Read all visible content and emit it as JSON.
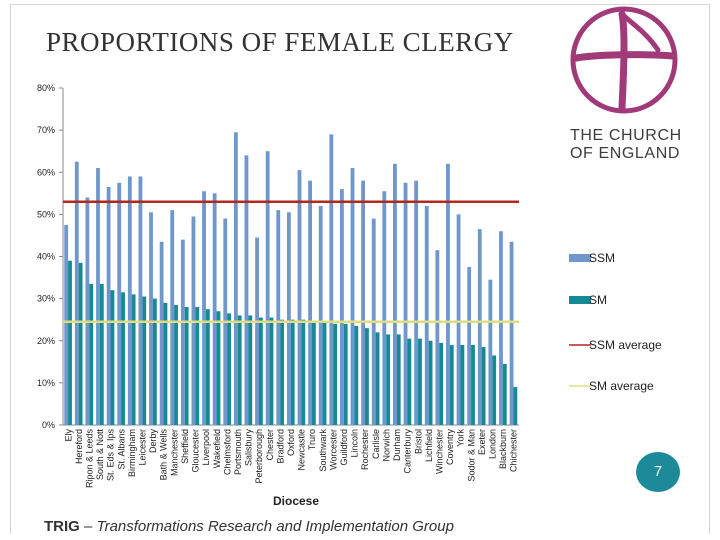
{
  "slide": {
    "title": "PROPORTIONS OF FEMALE CLERGY",
    "logo_line1": "THE CHURCH",
    "logo_line2": "OF ENGLAND",
    "page_number": "7",
    "footer_bold": "TRIG",
    "footer_rest": "Transformations Research and Implementation Group",
    "footer_sep": "–"
  },
  "colors": {
    "ssm": "#6f97cc",
    "sm": "#158a95",
    "ssm_avg": "#b0281e",
    "sm_avg": "#dede7e",
    "logo": "#a13a78"
  },
  "chart_data": {
    "type": "bar",
    "title": "",
    "xlabel": "Diocese",
    "ylabel": "",
    "ylim": [
      0,
      80
    ],
    "y_ticks": [
      "0%",
      "10%",
      "20%",
      "30%",
      "40%",
      "50%",
      "60%",
      "70%",
      "80%"
    ],
    "categories": [
      "Ely",
      "Hereford",
      "Ripon & Leeds",
      "South & Nott",
      "St. Eds & Ips",
      "St. Albans",
      "Birmingham",
      "Leicester",
      "Derby",
      "Bath & Wells",
      "Manchester",
      "Sheffield",
      "Gloucester",
      "Liverpool",
      "Wakefield",
      "Chelmsford",
      "Portsmouth",
      "Salisbury",
      "Peterborough",
      "Chester",
      "Bradford",
      "Oxford",
      "Newcastle",
      "Truro",
      "Southwark",
      "Worcester",
      "Guildford",
      "Lincoln",
      "Rochester",
      "Carlisle",
      "Norwich",
      "Durham",
      "Canterbury",
      "Bristol",
      "Lichfield",
      "Winchester",
      "Coventry",
      "York",
      "Sodor & Man",
      "Exeter",
      "London",
      "Blackburn",
      "Chichester"
    ],
    "series": [
      {
        "name": "SSM",
        "values": [
          47.5,
          62.5,
          54,
          61,
          56.5,
          57.5,
          59,
          59,
          50.5,
          43.5,
          51,
          44,
          49.5,
          55.5,
          55,
          49,
          69.5,
          64,
          44.5,
          65,
          51,
          50.5,
          60.5,
          58,
          52,
          69,
          56,
          61,
          58,
          49,
          55.5,
          62,
          57.5,
          58,
          52,
          41.5,
          62,
          50,
          37.5,
          46.5,
          34.5,
          46,
          43.5
        ]
      },
      {
        "name": "SM",
        "values": [
          39,
          38.5,
          33.5,
          33.5,
          32,
          31.5,
          31,
          30.5,
          30,
          29,
          28.5,
          28,
          28,
          27.5,
          27,
          26.5,
          26,
          26,
          25.5,
          25.5,
          25,
          25,
          25,
          24.5,
          24.5,
          24,
          24,
          23.5,
          23,
          22,
          21.5,
          21.5,
          20.5,
          20.5,
          20,
          19.5,
          19,
          19,
          19,
          18.5,
          16.5,
          14.5,
          9
        ]
      }
    ],
    "lines": [
      {
        "name": "SSM average",
        "value": 53
      },
      {
        "name": "SM average",
        "value": 24.5
      }
    ],
    "legend": {
      "position": "right",
      "entries": [
        {
          "label": "SSM",
          "kind": "bar"
        },
        {
          "label": "SM",
          "kind": "bar"
        },
        {
          "label": "SSM average",
          "kind": "line"
        },
        {
          "label": "SM average",
          "kind": "line"
        }
      ]
    },
    "grid": false
  }
}
